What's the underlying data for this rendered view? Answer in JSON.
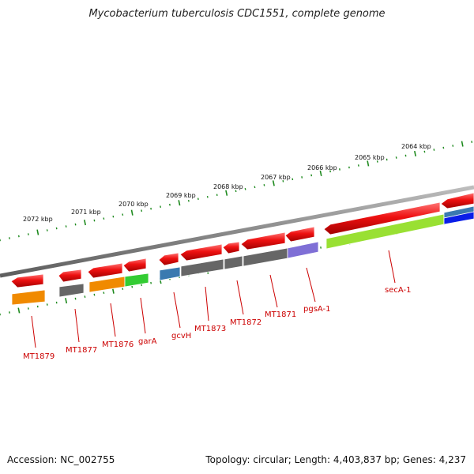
{
  "title": "Mycobacterium tuberculosis CDC1551, complete genome",
  "footer": {
    "accession": "Accession: NC_002755",
    "topology": "Topology: circular; Length: 4,403,837 bp; Genes: 4,237"
  },
  "colors": {
    "backbone": "#8a8a8a",
    "ruler": "#1e8a1e",
    "gene_forward": "#ee1111",
    "label": "#cc0000"
  },
  "ticks": [
    "2072 kbp",
    "2071 kbp",
    "2070 kbp",
    "2069 kbp",
    "2068 kbp",
    "2067 kbp",
    "2066 kbp",
    "2065 kbp",
    "2064 kbp"
  ],
  "genes": [
    {
      "label": "MT1879",
      "cog_color": "#f08a00"
    },
    {
      "label": "MT1877",
      "cog_color": "#666666"
    },
    {
      "label": "MT1876",
      "cog_color": "#f08a00"
    },
    {
      "label": "garA",
      "cog_color": "#33cc33"
    },
    {
      "label": "gcvH",
      "cog_color": "#3a7ab0"
    },
    {
      "label": "MT1873",
      "cog_color": "#666666"
    },
    {
      "label": "MT1872",
      "cog_color": "#666666"
    },
    {
      "label": "MT1871",
      "cog_color": "#666666"
    },
    {
      "label": "pgsA-1",
      "cog_color": "#7f6fd6"
    },
    {
      "label": "secA-1",
      "cog_color": "#99e033"
    }
  ]
}
